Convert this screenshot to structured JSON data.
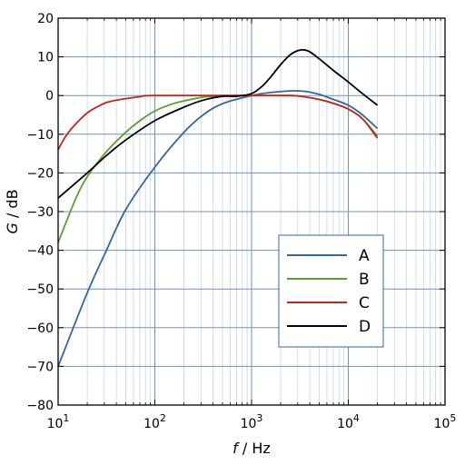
{
  "chart_data": {
    "type": "line",
    "x_scale": "log",
    "xlim": [
      10,
      100000
    ],
    "ylim": [
      -80,
      20
    ],
    "yticks": [
      20,
      10,
      0,
      -10,
      -20,
      -30,
      -40,
      -50,
      -60,
      -70,
      -80
    ],
    "ytick_labels": [
      "20",
      "10",
      "0",
      "−10",
      "−20",
      "−30",
      "−40",
      "−50",
      "−60",
      "−70",
      "−80"
    ],
    "xticks": [
      {
        "value": 10,
        "base": "10",
        "exp": "1"
      },
      {
        "value": 100,
        "base": "10",
        "exp": "2"
      },
      {
        "value": 1000,
        "base": "10",
        "exp": "3"
      },
      {
        "value": 10000,
        "base": "10",
        "exp": "4"
      },
      {
        "value": 100000,
        "base": "10",
        "exp": "5"
      }
    ],
    "xlabel": {
      "symbol": "f",
      "unit": " / Hz"
    },
    "ylabel": {
      "symbol": "G",
      "unit": " / dB"
    },
    "grid": true,
    "legend_position": "lower-right",
    "series": [
      {
        "name": "A",
        "color": "#3465a4",
        "points": [
          [
            10,
            -70
          ],
          [
            20,
            -51
          ],
          [
            31.6,
            -40
          ],
          [
            50,
            -29.5
          ],
          [
            100,
            -18.5
          ],
          [
            200,
            -9.5
          ],
          [
            316,
            -5
          ],
          [
            500,
            -2.1
          ],
          [
            1000,
            0
          ],
          [
            1600,
            0.8
          ],
          [
            2500,
            1.2
          ],
          [
            3500,
            1.1
          ],
          [
            5000,
            0.3
          ],
          [
            7000,
            -1
          ],
          [
            10000,
            -2.5
          ],
          [
            14000,
            -5
          ],
          [
            20000,
            -8.5
          ]
        ]
      },
      {
        "name": "B",
        "color": "#5aa02c",
        "points": [
          [
            10,
            -38
          ],
          [
            15,
            -27
          ],
          [
            20,
            -21
          ],
          [
            31.6,
            -14.5
          ],
          [
            50,
            -9.5
          ],
          [
            70,
            -6.5
          ],
          [
            100,
            -4
          ],
          [
            150,
            -2.2
          ],
          [
            200,
            -1.4
          ],
          [
            316,
            -0.4
          ],
          [
            500,
            0
          ],
          [
            700,
            0
          ],
          [
            1000,
            0
          ],
          [
            2000,
            0
          ],
          [
            3000,
            -0.1
          ],
          [
            5000,
            -1
          ],
          [
            7000,
            -2
          ],
          [
            10000,
            -3.5
          ],
          [
            14000,
            -6
          ],
          [
            20000,
            -10.5
          ]
        ]
      },
      {
        "name": "C",
        "color": "#c0281c",
        "points": [
          [
            10,
            -14
          ],
          [
            12,
            -10.5
          ],
          [
            15,
            -7.5
          ],
          [
            20,
            -4.5
          ],
          [
            25,
            -3
          ],
          [
            31.6,
            -1.8
          ],
          [
            40,
            -1.2
          ],
          [
            50,
            -0.8
          ],
          [
            70,
            -0.3
          ],
          [
            100,
            0
          ],
          [
            1000,
            0
          ],
          [
            2000,
            0
          ],
          [
            3000,
            -0.1
          ],
          [
            5000,
            -1
          ],
          [
            7000,
            -2
          ],
          [
            10000,
            -3.5
          ],
          [
            14000,
            -6
          ],
          [
            20000,
            -11
          ]
        ]
      },
      {
        "name": "D",
        "color": "#000000",
        "points": [
          [
            10,
            -26.5
          ],
          [
            20,
            -20
          ],
          [
            31.6,
            -15.5
          ],
          [
            50,
            -11.5
          ],
          [
            100,
            -6.5
          ],
          [
            200,
            -3
          ],
          [
            316,
            -1.2
          ],
          [
            500,
            -0.2
          ],
          [
            700,
            -0.2
          ],
          [
            1000,
            0.5
          ],
          [
            1300,
            2.5
          ],
          [
            1600,
            5
          ],
          [
            2000,
            8
          ],
          [
            2500,
            10.5
          ],
          [
            3000,
            11.6
          ],
          [
            3500,
            11.8
          ],
          [
            4000,
            11.3
          ],
          [
            5000,
            9.5
          ],
          [
            7000,
            6.5
          ],
          [
            10000,
            3.5
          ],
          [
            14000,
            0.5
          ],
          [
            20000,
            -2.5
          ]
        ]
      }
    ]
  }
}
